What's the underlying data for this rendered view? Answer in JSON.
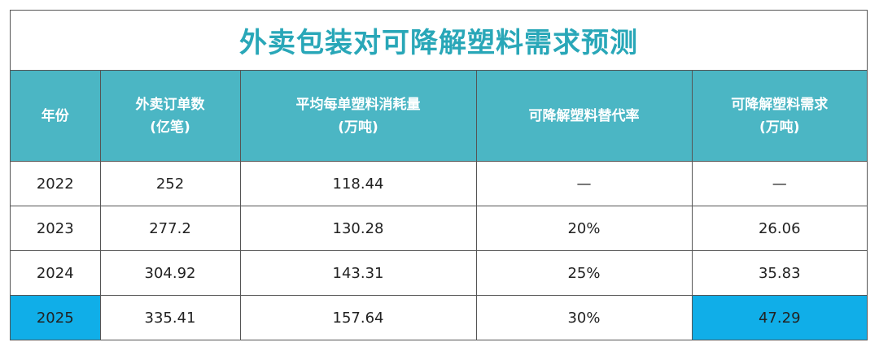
{
  "title": "外卖包装对可降解塑料需求预测",
  "headers": [
    {
      "line1": "年份",
      "line2": ""
    },
    {
      "line1": "外卖订单数",
      "line2": "(亿笔)"
    },
    {
      "line1": "平均每单塑料消耗量",
      "line2": "(万吨)"
    },
    {
      "line1": "可降解塑料替代率",
      "line2": ""
    },
    {
      "line1": "可降解塑料需求",
      "line2": "(万吨)"
    }
  ],
  "rows": [
    {
      "year": "2022",
      "orders": "252",
      "avg": "118.44",
      "rate": "—",
      "demand": "—"
    },
    {
      "year": "2023",
      "orders": "277.2",
      "avg": "130.28",
      "rate": "20%",
      "demand": "26.06"
    },
    {
      "year": "2024",
      "orders": "304.92",
      "avg": "143.31",
      "rate": "25%",
      "demand": "35.83"
    },
    {
      "year": "2025",
      "orders": "335.41",
      "avg": "157.64",
      "rate": "30%",
      "demand": "47.29"
    }
  ],
  "colors": {
    "title": "#29a7b8",
    "header_bg": "#4bb6c4",
    "highlight": "#10aee8",
    "border": "#555555"
  }
}
